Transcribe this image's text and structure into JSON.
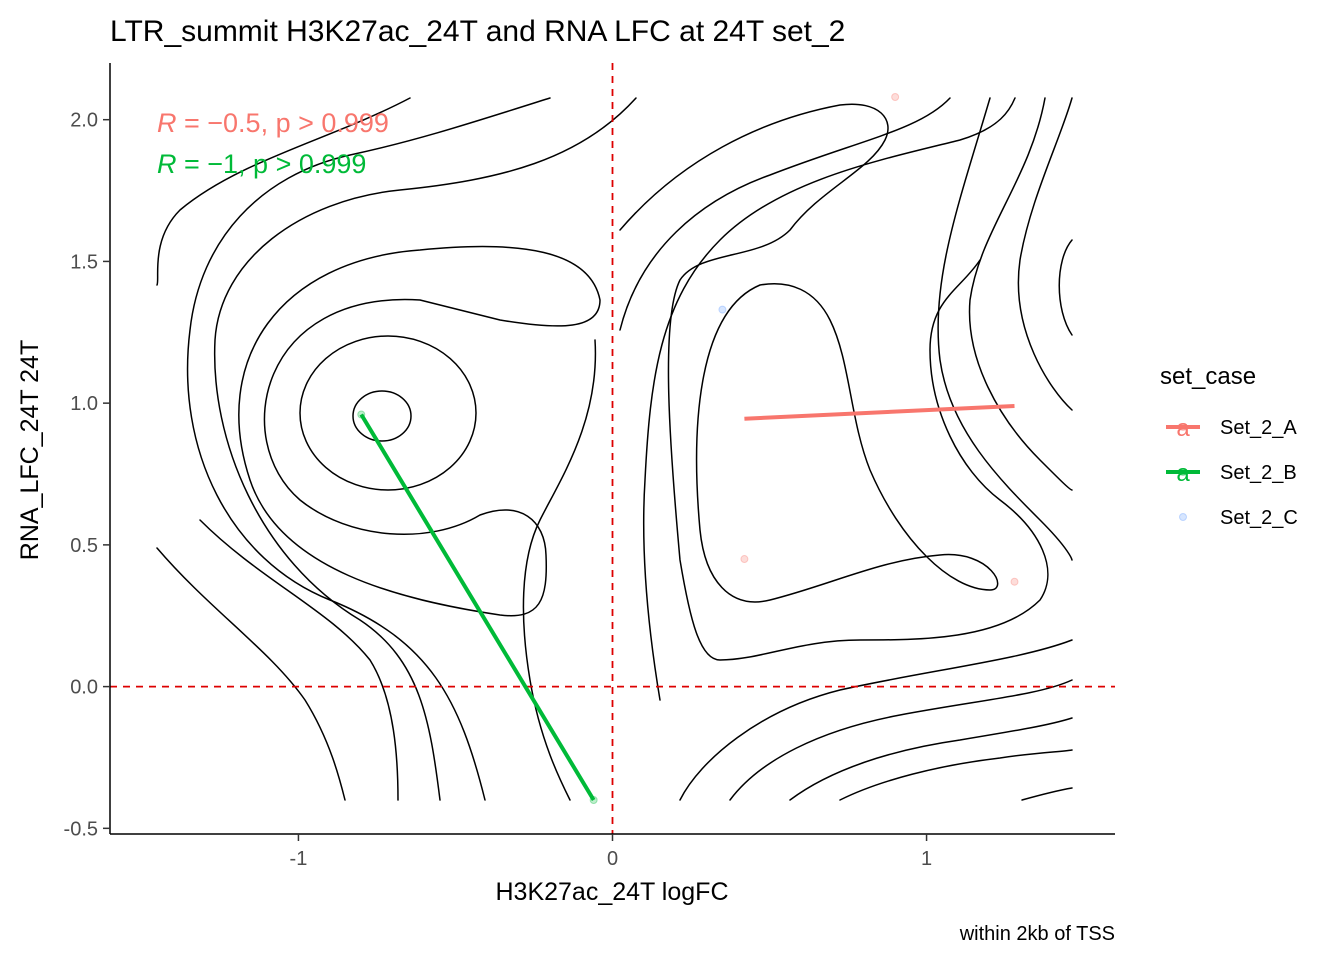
{
  "chart_data": {
    "type": "scatter",
    "title": "LTR_summit H3K27ac_24T and RNA LFC at 24T set_2",
    "xlabel": "H3K27ac_24T logFC",
    "ylabel": "RNA_LFC_24T 24T",
    "caption": "within 2kb of TSS",
    "xlim": [
      -1.6,
      1.6
    ],
    "ylim": [
      -0.52,
      2.2
    ],
    "x_ticks": [
      -1,
      0,
      1
    ],
    "x_tick_labels": [
      "-1",
      "0",
      "1"
    ],
    "y_ticks": [
      -0.5,
      0.0,
      0.5,
      1.0,
      1.5,
      2.0
    ],
    "y_tick_labels": [
      "-0.5",
      "0.0",
      "0.5",
      "1.0",
      "1.5",
      "2.0"
    ],
    "reference_lines": {
      "vertical_x": 0,
      "horizontal_y": 0,
      "color": "#dd0000",
      "style": "dashed"
    },
    "grid": false,
    "legend": {
      "title": "set_case",
      "position": "right",
      "key_glyph": "a",
      "entries": [
        "Set_2_A",
        "Set_2_B",
        "Set_2_C"
      ]
    },
    "annotations": [
      {
        "series": "Set_2_A",
        "r_label": "R",
        "text": " = −0.5, p > 0.999",
        "color": "#f8766d"
      },
      {
        "series": "Set_2_B",
        "r_label": "R",
        "text": " = −1, p > 0.999",
        "color": "#00ba38"
      }
    ],
    "series": [
      {
        "name": "Set_2_A",
        "color": "#f8766d",
        "points": [
          [
            0.9,
            2.08
          ],
          [
            0.42,
            0.45
          ],
          [
            1.28,
            0.37
          ]
        ],
        "fit": [
          [
            0.42,
            0.945
          ],
          [
            1.28,
            0.99
          ]
        ]
      },
      {
        "name": "Set_2_B",
        "color": "#00ba38",
        "points": [
          [
            -0.8,
            0.96
          ],
          [
            -0.06,
            -0.4
          ]
        ],
        "fit": [
          [
            -0.8,
            0.96
          ],
          [
            -0.06,
            -0.4
          ]
        ]
      },
      {
        "name": "Set_2_C",
        "color": "#619cff",
        "points": [
          [
            0.35,
            1.33
          ]
        ],
        "fit": []
      }
    ],
    "density_contours": true
  }
}
